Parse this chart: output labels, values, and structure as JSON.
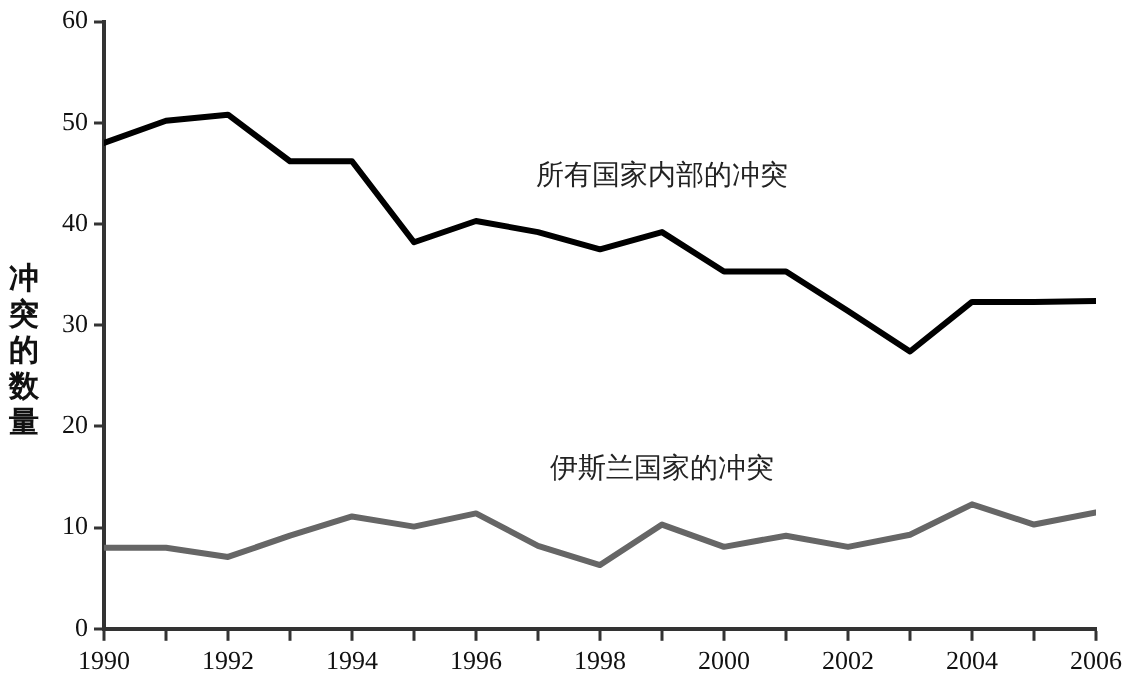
{
  "chart_data": {
    "type": "line",
    "ylabel": "冲突的数量",
    "x": [
      1990,
      1991,
      1992,
      1993,
      1994,
      1995,
      1996,
      1997,
      1998,
      1999,
      2000,
      2001,
      2002,
      2003,
      2004,
      2005,
      2006
    ],
    "series": [
      {
        "name": "所有国家内部的冲突",
        "color": "#000000",
        "values": [
          48,
          50.2,
          50.8,
          46.2,
          46.2,
          38.2,
          40.3,
          39.2,
          37.5,
          39.2,
          35.3,
          35.3,
          31.4,
          27.4,
          32.3,
          32.3,
          32.4
        ]
      },
      {
        "name": "伊斯兰国家的冲突",
        "color": "#666666",
        "values": [
          8,
          8,
          7.1,
          9.2,
          11.1,
          10.1,
          11.4,
          8.2,
          6.3,
          10.3,
          8.1,
          9.2,
          8.1,
          9.3,
          12.3,
          10.3,
          11.5
        ]
      }
    ],
    "xlim": [
      1990,
      2006
    ],
    "xticks": [
      1990,
      {
        "value": 1991,
        "label": null
      },
      1992,
      {
        "value": 1993,
        "label": null
      },
      1994,
      {
        "value": 1995,
        "label": null
      },
      1996,
      {
        "value": 1997,
        "label": null
      },
      1998,
      {
        "value": 1999,
        "label": null
      },
      2000,
      {
        "value": 2001,
        "label": null
      },
      2002,
      {
        "value": 2003,
        "label": null
      },
      2004,
      {
        "value": 2005,
        "label": null
      },
      2006
    ],
    "ylim": [
      0,
      60
    ],
    "yticks": [
      0,
      10,
      20,
      30,
      40,
      50,
      60
    ],
    "grid": false,
    "legend": false,
    "marker": "none",
    "line_style": "solid"
  }
}
